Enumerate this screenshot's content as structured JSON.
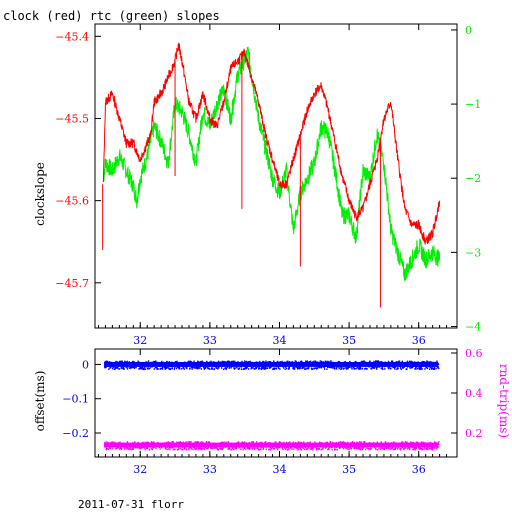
{
  "figure": {
    "title": "clock (red) rtc (green) slopes",
    "footer": "2011-07-31 florr"
  },
  "colors": {
    "clock": "#ff0000",
    "rtc": "#00ee00",
    "offset": "#0000ff",
    "rndtrip": "#ff00ff",
    "frame": "#000000"
  },
  "chart_data": [
    {
      "type": "line",
      "ylabel": "clockslope",
      "y2label": "",
      "xlim": [
        31.35,
        36.55
      ],
      "ylim": [
        -45.755,
        -45.385
      ],
      "y2lim": [
        -4.02,
        0.08
      ],
      "xticks": [
        "32",
        "33",
        "34",
        "35",
        "36"
      ],
      "yticks": [
        "-45.4",
        "-45.5",
        "-45.6",
        "-45.7"
      ],
      "y2ticks": [
        "0",
        "-1",
        "-2",
        "-3",
        "-4"
      ],
      "series": [
        {
          "name": "clock",
          "axis": "left",
          "x": [
            31.47,
            31.5,
            31.6,
            31.7,
            31.8,
            31.9,
            32.0,
            32.1,
            32.15,
            32.2,
            32.3,
            32.4,
            32.5,
            32.55,
            32.6,
            32.7,
            32.8,
            32.9,
            33.0,
            33.1,
            33.2,
            33.3,
            33.4,
            33.5,
            33.6,
            33.7,
            33.8,
            33.9,
            34.0,
            34.1,
            34.2,
            34.3,
            34.4,
            34.5,
            34.6,
            34.7,
            34.8,
            34.9,
            35.0,
            35.1,
            35.2,
            35.3,
            35.4,
            35.5,
            35.6,
            35.7,
            35.8,
            35.9,
            36.0,
            36.1,
            36.2,
            36.3
          ],
          "values": [
            -45.58,
            -45.48,
            -45.47,
            -45.5,
            -45.53,
            -45.53,
            -45.55,
            -45.53,
            -45.52,
            -45.48,
            -45.47,
            -45.45,
            -45.43,
            -45.41,
            -45.43,
            -45.48,
            -45.5,
            -45.47,
            -45.5,
            -45.51,
            -45.48,
            -45.44,
            -45.43,
            -45.42,
            -45.45,
            -45.48,
            -45.52,
            -45.55,
            -45.58,
            -45.58,
            -45.55,
            -45.52,
            -45.49,
            -45.47,
            -45.46,
            -45.49,
            -45.53,
            -45.57,
            -45.6,
            -45.62,
            -45.61,
            -45.58,
            -45.55,
            -45.5,
            -45.48,
            -45.55,
            -45.61,
            -45.63,
            -45.63,
            -45.65,
            -45.64,
            -45.6
          ],
          "spikes": [
            {
              "x": 31.46,
              "value": -45.66
            },
            {
              "x": 32.5,
              "value": -45.57
            },
            {
              "x": 33.46,
              "value": -45.61
            },
            {
              "x": 34.3,
              "value": -45.68
            },
            {
              "x": 35.45,
              "value": -45.73
            }
          ]
        },
        {
          "name": "rtc",
          "axis": "right",
          "x": [
            31.47,
            31.5,
            31.6,
            31.7,
            31.8,
            31.9,
            31.95,
            32.0,
            32.1,
            32.2,
            32.3,
            32.4,
            32.5,
            32.6,
            32.7,
            32.8,
            32.9,
            33.0,
            33.1,
            33.2,
            33.3,
            33.4,
            33.5,
            33.55,
            33.6,
            33.7,
            33.8,
            33.9,
            34.0,
            34.1,
            34.2,
            34.3,
            34.4,
            34.5,
            34.6,
            34.7,
            34.8,
            34.9,
            35.0,
            35.1,
            35.2,
            35.3,
            35.4,
            35.5,
            35.6,
            35.7,
            35.8,
            35.9,
            36.0,
            36.1,
            36.2,
            36.3
          ],
          "values": [
            -2.0,
            -1.8,
            -1.9,
            -1.7,
            -1.9,
            -2.1,
            -2.3,
            -2.0,
            -1.7,
            -1.3,
            -1.5,
            -1.8,
            -1.0,
            -1.1,
            -1.4,
            -1.8,
            -1.1,
            -1.3,
            -1.0,
            -0.8,
            -1.2,
            -0.6,
            -0.4,
            -0.3,
            -0.6,
            -1.2,
            -1.6,
            -2.0,
            -2.2,
            -1.9,
            -2.7,
            -2.2,
            -2.0,
            -1.8,
            -1.3,
            -1.4,
            -1.9,
            -2.5,
            -2.5,
            -2.8,
            -1.9,
            -2.0,
            -1.4,
            -1.8,
            -2.7,
            -3.0,
            -3.3,
            -3.1,
            -2.9,
            -3.1,
            -3.0,
            -3.1
          ]
        }
      ]
    },
    {
      "type": "scatter",
      "ylabel": "offset(ms)",
      "y2label": "rnd-trip(ms)",
      "xlim": [
        31.35,
        36.55
      ],
      "ylim": [
        -0.27,
        0.045
      ],
      "y2lim": [
        0.08,
        0.62
      ],
      "xticks": [
        "32",
        "33",
        "34",
        "35",
        "36"
      ],
      "yticks": [
        "0",
        "-0.1",
        "-0.2"
      ],
      "y2ticks": [
        "0.6",
        "0.4",
        "0.2"
      ],
      "series": [
        {
          "name": "offset",
          "axis": "left",
          "x": [
            31.48,
            36.28
          ],
          "values": [
            0.0,
            0.0
          ]
        },
        {
          "name": "rndtrip",
          "axis": "right",
          "x": [
            31.48,
            36.28
          ],
          "values": [
            0.14,
            0.14
          ]
        }
      ]
    }
  ]
}
